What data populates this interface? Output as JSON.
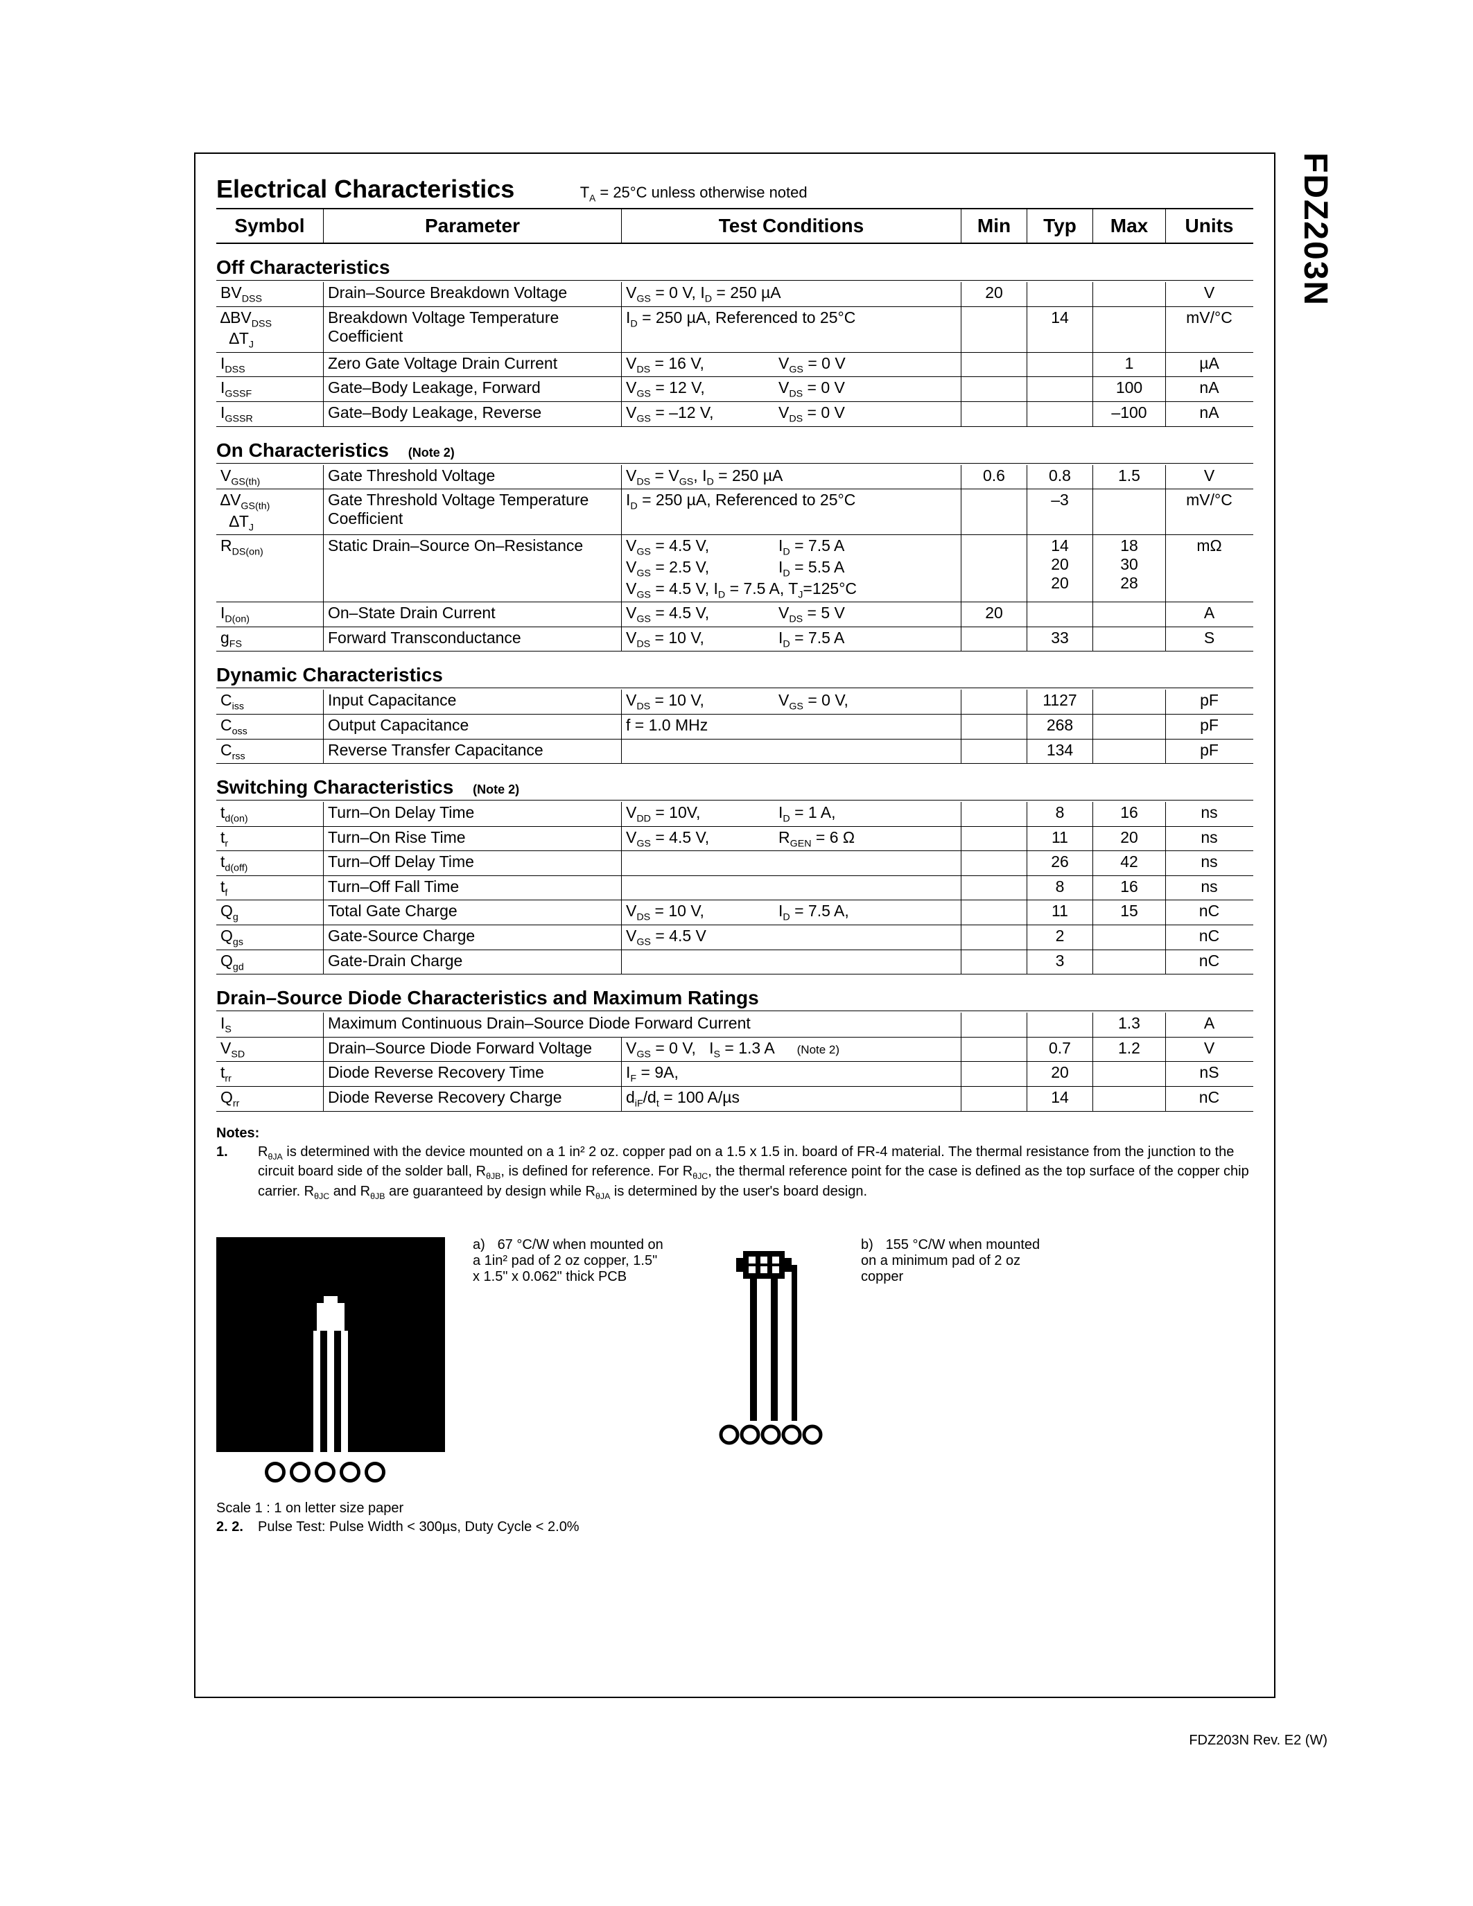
{
  "partNumber": "FDZ203N",
  "title": "Electrical Characteristics",
  "titleNote": "T_A = 25°C unless otherwise noted",
  "headers": {
    "symbol": "Symbol",
    "parameter": "Parameter",
    "cond": "Test Conditions",
    "min": "Min",
    "typ": "Typ",
    "max": "Max",
    "units": "Units"
  },
  "sections": [
    {
      "title": "Off Characteristics",
      "note": "",
      "rows": [
        {
          "sym": "BV<sub>DSS</sub>",
          "param": "Drain–Source Breakdown Voltage",
          "cond": "V<sub>GS</sub> = 0 V, I<sub>D</sub> = 250 µA",
          "min": "20",
          "typ": "",
          "max": "",
          "unit": "V"
        },
        {
          "sym": "∆BV<sub>DSS</sub><br>&nbsp;&nbsp;∆T<sub>J</sub>",
          "param": "Breakdown Voltage Temperature Coefficient",
          "cond": "I<sub>D</sub> = 250 µA, Referenced to 25°C",
          "min": "",
          "typ": "14",
          "max": "",
          "unit": "mV/°C",
          "heavy": true
        },
        {
          "sym": "I<sub>DSS</sub>",
          "param": "Zero Gate Voltage Drain Current",
          "cond": "<span class='cond-col'>V<sub>DS</sub> = 16 V,</span>V<sub>GS</sub> = 0 V",
          "min": "",
          "typ": "",
          "max": "1",
          "unit": "µA"
        },
        {
          "sym": "I<sub>GSSF</sub>",
          "param": "Gate–Body Leakage, Forward",
          "cond": "<span class='cond-col'>V<sub>GS</sub> = 12 V,</span>V<sub>DS</sub> = 0 V",
          "min": "",
          "typ": "",
          "max": "100",
          "unit": "nA"
        },
        {
          "sym": "I<sub>GSSR</sub>",
          "param": "Gate–Body Leakage, Reverse",
          "cond": "<span class='cond-col'>V<sub>GS</sub> = –12 V,</span>V<sub>DS</sub> = 0 V",
          "min": "",
          "typ": "",
          "max": "–100",
          "unit": "nA"
        }
      ]
    },
    {
      "title": "On Characteristics",
      "note": "(Note 2)",
      "rows": [
        {
          "sym": "V<sub>GS(th)</sub>",
          "param": "Gate Threshold Voltage",
          "cond": "V<sub>DS</sub> = V<sub>GS</sub>, I<sub>D</sub> = 250 µA",
          "min": "0.6",
          "typ": "0.8",
          "max": "1.5",
          "unit": "V"
        },
        {
          "sym": "∆V<sub>GS(th)</sub><br>&nbsp;&nbsp;∆T<sub>J</sub>",
          "param": "Gate Threshold Voltage Temperature Coefficient",
          "cond": "I<sub>D</sub> = 250 µA, Referenced to 25°C",
          "min": "",
          "typ": "–3",
          "max": "",
          "unit": "mV/°C"
        },
        {
          "sym": "R<sub>DS(on)</sub>",
          "param": "Static Drain–Source On–Resistance",
          "cond": "<span class='cond-line'><span class='cond-col'>V<sub>GS</sub> = 4.5 V,</span>I<sub>D</sub> = 7.5 A</span><span class='cond-line'><span class='cond-col'>V<sub>GS</sub> = 2.5 V,</span>I<sub>D</sub> = 5.5 A</span><span class='cond-line'>V<sub>GS</sub> = 4.5 V, I<sub>D</sub> = 7.5 A, T<sub>J</sub>=125°C</span>",
          "min": "",
          "typ": "14<br>20<br>20",
          "max": "18<br>30<br>28",
          "unit": "mΩ",
          "heavy": true
        },
        {
          "sym": "I<sub>D(on)</sub>",
          "param": "On–State Drain Current",
          "cond": "<span class='cond-col'>V<sub>GS</sub> = 4.5 V,</span>V<sub>DS</sub> = 5 V",
          "min": "20",
          "typ": "",
          "max": "",
          "unit": "A"
        },
        {
          "sym": "g<sub>FS</sub>",
          "param": "Forward Transconductance",
          "cond": "<span class='cond-col'>V<sub>DS</sub> = 10 V,</span>I<sub>D</sub> = 7.5 A",
          "min": "",
          "typ": "33",
          "max": "",
          "unit": "S"
        }
      ]
    },
    {
      "title": "Dynamic Characteristics",
      "note": "",
      "rows": [
        {
          "sym": "C<sub>iss</sub>",
          "param": "Input Capacitance",
          "cond": "<span class='cond-col'>V<sub>DS</sub> = 10 V,</span>V<sub>GS</sub> = 0 V,",
          "min": "",
          "typ": "1127",
          "max": "",
          "unit": "pF"
        },
        {
          "sym": "C<sub>oss</sub>",
          "param": "Output Capacitance",
          "cond": "f = 1.0 MHz",
          "min": "",
          "typ": "268",
          "max": "",
          "unit": "pF"
        },
        {
          "sym": "C<sub>rss</sub>",
          "param": "Reverse Transfer Capacitance",
          "cond": "",
          "min": "",
          "typ": "134",
          "max": "",
          "unit": "pF"
        }
      ]
    },
    {
      "title": "Switching Characteristics",
      "note": "(Note 2)",
      "rows": [
        {
          "sym": "t<sub>d(on)</sub>",
          "param": "Turn–On Delay Time",
          "cond": "<span class='cond-col'>V<sub>DD</sub> = 10V,</span>I<sub>D</sub> = 1 A,",
          "min": "",
          "typ": "8",
          "max": "16",
          "unit": "ns"
        },
        {
          "sym": "t<sub>r</sub>",
          "param": "Turn–On Rise Time",
          "cond": "<span class='cond-col'>V<sub>GS</sub> = 4.5 V,</span>R<sub>GEN</sub> = 6 Ω",
          "min": "",
          "typ": "11",
          "max": "20",
          "unit": "ns"
        },
        {
          "sym": "t<sub>d(off)</sub>",
          "param": "Turn–Off Delay Time",
          "cond": "",
          "min": "",
          "typ": "26",
          "max": "42",
          "unit": "ns"
        },
        {
          "sym": "t<sub>f</sub>",
          "param": "Turn–Off Fall Time",
          "cond": "",
          "min": "",
          "typ": "8",
          "max": "16",
          "unit": "ns",
          "heavy": true
        },
        {
          "sym": "Q<sub>g</sub>",
          "param": "Total Gate Charge",
          "cond": "<span class='cond-col'>V<sub>DS</sub> = 10 V,</span>I<sub>D</sub> = 7.5 A,",
          "min": "",
          "typ": "11",
          "max": "15",
          "unit": "nC"
        },
        {
          "sym": "Q<sub>gs</sub>",
          "param": "Gate-Source Charge",
          "cond": "V<sub>GS</sub> = 4.5 V",
          "min": "",
          "typ": "2",
          "max": "",
          "unit": "nC"
        },
        {
          "sym": "Q<sub>gd</sub>",
          "param": "Gate-Drain Charge",
          "cond": "",
          "min": "",
          "typ": "3",
          "max": "",
          "unit": "nC"
        }
      ]
    },
    {
      "title": "Drain–Source Diode Characteristics and Maximum Ratings",
      "note": "",
      "rows": [
        {
          "sym": "I<sub>S</sub>",
          "param_wide": "Maximum Continuous Drain–Source Diode Forward Current",
          "min": "",
          "typ": "",
          "max": "1.3",
          "unit": "A"
        },
        {
          "sym": "V<sub>SD</sub>",
          "param": "Drain–Source Diode Forward Voltage",
          "cond": "V<sub>GS</sub> = 0 V,&nbsp;&nbsp;&nbsp;I<sub>S</sub> = 1.3 A&nbsp;&nbsp;&nbsp;&nbsp;&nbsp;<span style='font-size:17px'>(Note 2)</span>",
          "min": "",
          "typ": "0.7",
          "max": "1.2",
          "unit": "V",
          "heavy": true
        },
        {
          "sym": "t<sub>rr</sub>",
          "param": "Diode Reverse Recovery Time",
          "cond": "I<sub>F</sub> = 9A,",
          "min": "",
          "typ": "20",
          "max": "",
          "unit": "nS"
        },
        {
          "sym": "Q<sub>rr</sub>",
          "param": "Diode Reverse Recovery Charge",
          "cond": "d<sub>iF</sub>/d<sub>t</sub> = 100 A/µs",
          "min": "",
          "typ": "14",
          "max": "",
          "unit": "nC"
        }
      ]
    }
  ],
  "notesHeader": "Notes:",
  "notes": [
    {
      "n": "1.",
      "t": "R<sub>θJA</sub> is determined with the device mounted on a 1 in² 2 oz. copper pad on a 1.5 x 1.5 in. board of FR-4 material. The thermal resistance from the junction to the circuit board side of the solder ball, R<sub>θJB</sub>, is defined for reference. For R<sub>θJC</sub>, the thermal reference point for the case is defined as the top surface of the copper chip carrier. R<sub>θJC</sub> and R<sub>θJB</sub> are guaranteed by design while R<sub>θJA</sub> is determined by the user's board design."
    }
  ],
  "pcb": {
    "a_tag": "a)",
    "a_text": "67 °C/W when mounted on a 1in² pad of 2 oz copper, 1.5\" x 1.5\" x 0.062\" thick PCB",
    "b_tag": "b)",
    "b_text": "155 °C/W when mounted on a minimum pad of 2 oz copper"
  },
  "scaleNote": "Scale 1 : 1 on letter size paper",
  "note2": {
    "n": "2. 2.",
    "t": "Pulse Test: Pulse Width < 300µs, Duty Cycle < 2.0%"
  },
  "footer": "FDZ203N Rev. E2  (W)"
}
